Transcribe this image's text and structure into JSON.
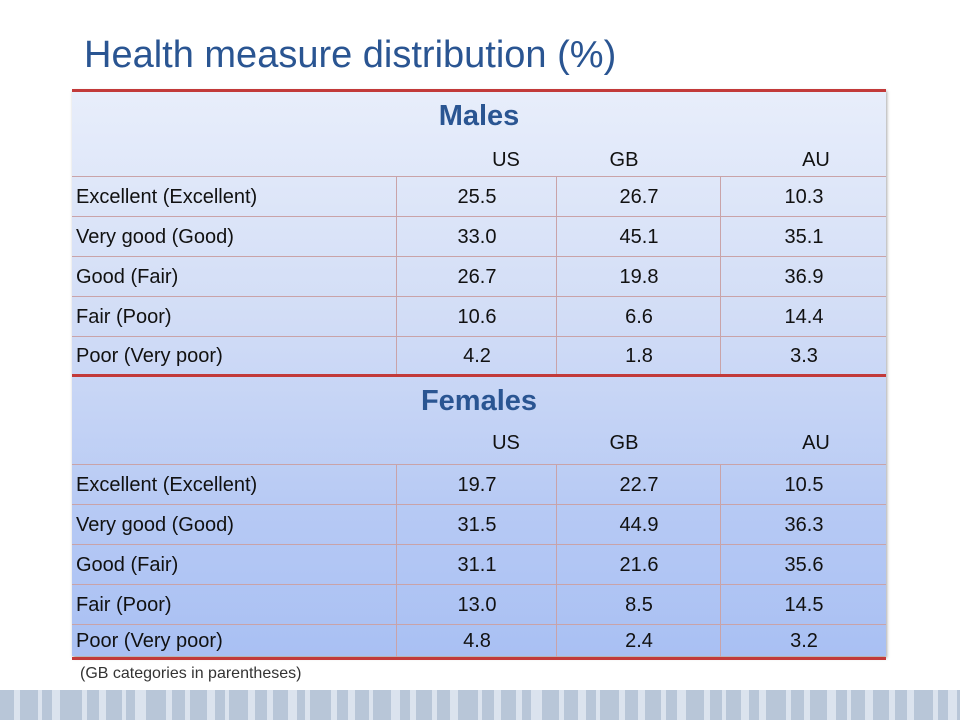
{
  "title": "Health measure distribution (%)",
  "columns": [
    "US",
    "GB",
    "AU"
  ],
  "sections": [
    {
      "title": "Males",
      "rows": [
        {
          "label": "Excellent (Excellent)",
          "values": [
            "25.5",
            "26.7",
            "10.3"
          ]
        },
        {
          "label": "Very good (Good)",
          "values": [
            "33.0",
            "45.1",
            "35.1"
          ]
        },
        {
          "label": "Good (Fair)",
          "values": [
            "26.7",
            "19.8",
            "36.9"
          ]
        },
        {
          "label": "Fair (Poor)",
          "values": [
            "10.6",
            "6.6",
            "14.4"
          ]
        },
        {
          "label": "Poor (Very poor)",
          "values": [
            "4.2",
            "1.8",
            "3.3"
          ]
        }
      ]
    },
    {
      "title": "Females",
      "rows": [
        {
          "label": "Excellent (Excellent)",
          "values": [
            "19.7",
            "22.7",
            "10.5"
          ]
        },
        {
          "label": "Very good (Good)",
          "values": [
            "31.5",
            "44.9",
            "36.3"
          ]
        },
        {
          "label": "Good (Fair)",
          "values": [
            "31.1",
            "21.6",
            "35.6"
          ]
        },
        {
          "label": "Fair (Poor)",
          "values": [
            "13.0",
            "8.5",
            "14.5"
          ]
        },
        {
          "label": "Poor (Very poor)",
          "values": [
            "4.8",
            "2.4",
            "3.2"
          ]
        }
      ]
    }
  ],
  "footnote": "(GB categories in parentheses)",
  "colors": {
    "title": "#2a5592",
    "rule": "#c23a3a",
    "stripe_dark": "#b8c6d8",
    "stripe_light": "#dbe3ee"
  }
}
